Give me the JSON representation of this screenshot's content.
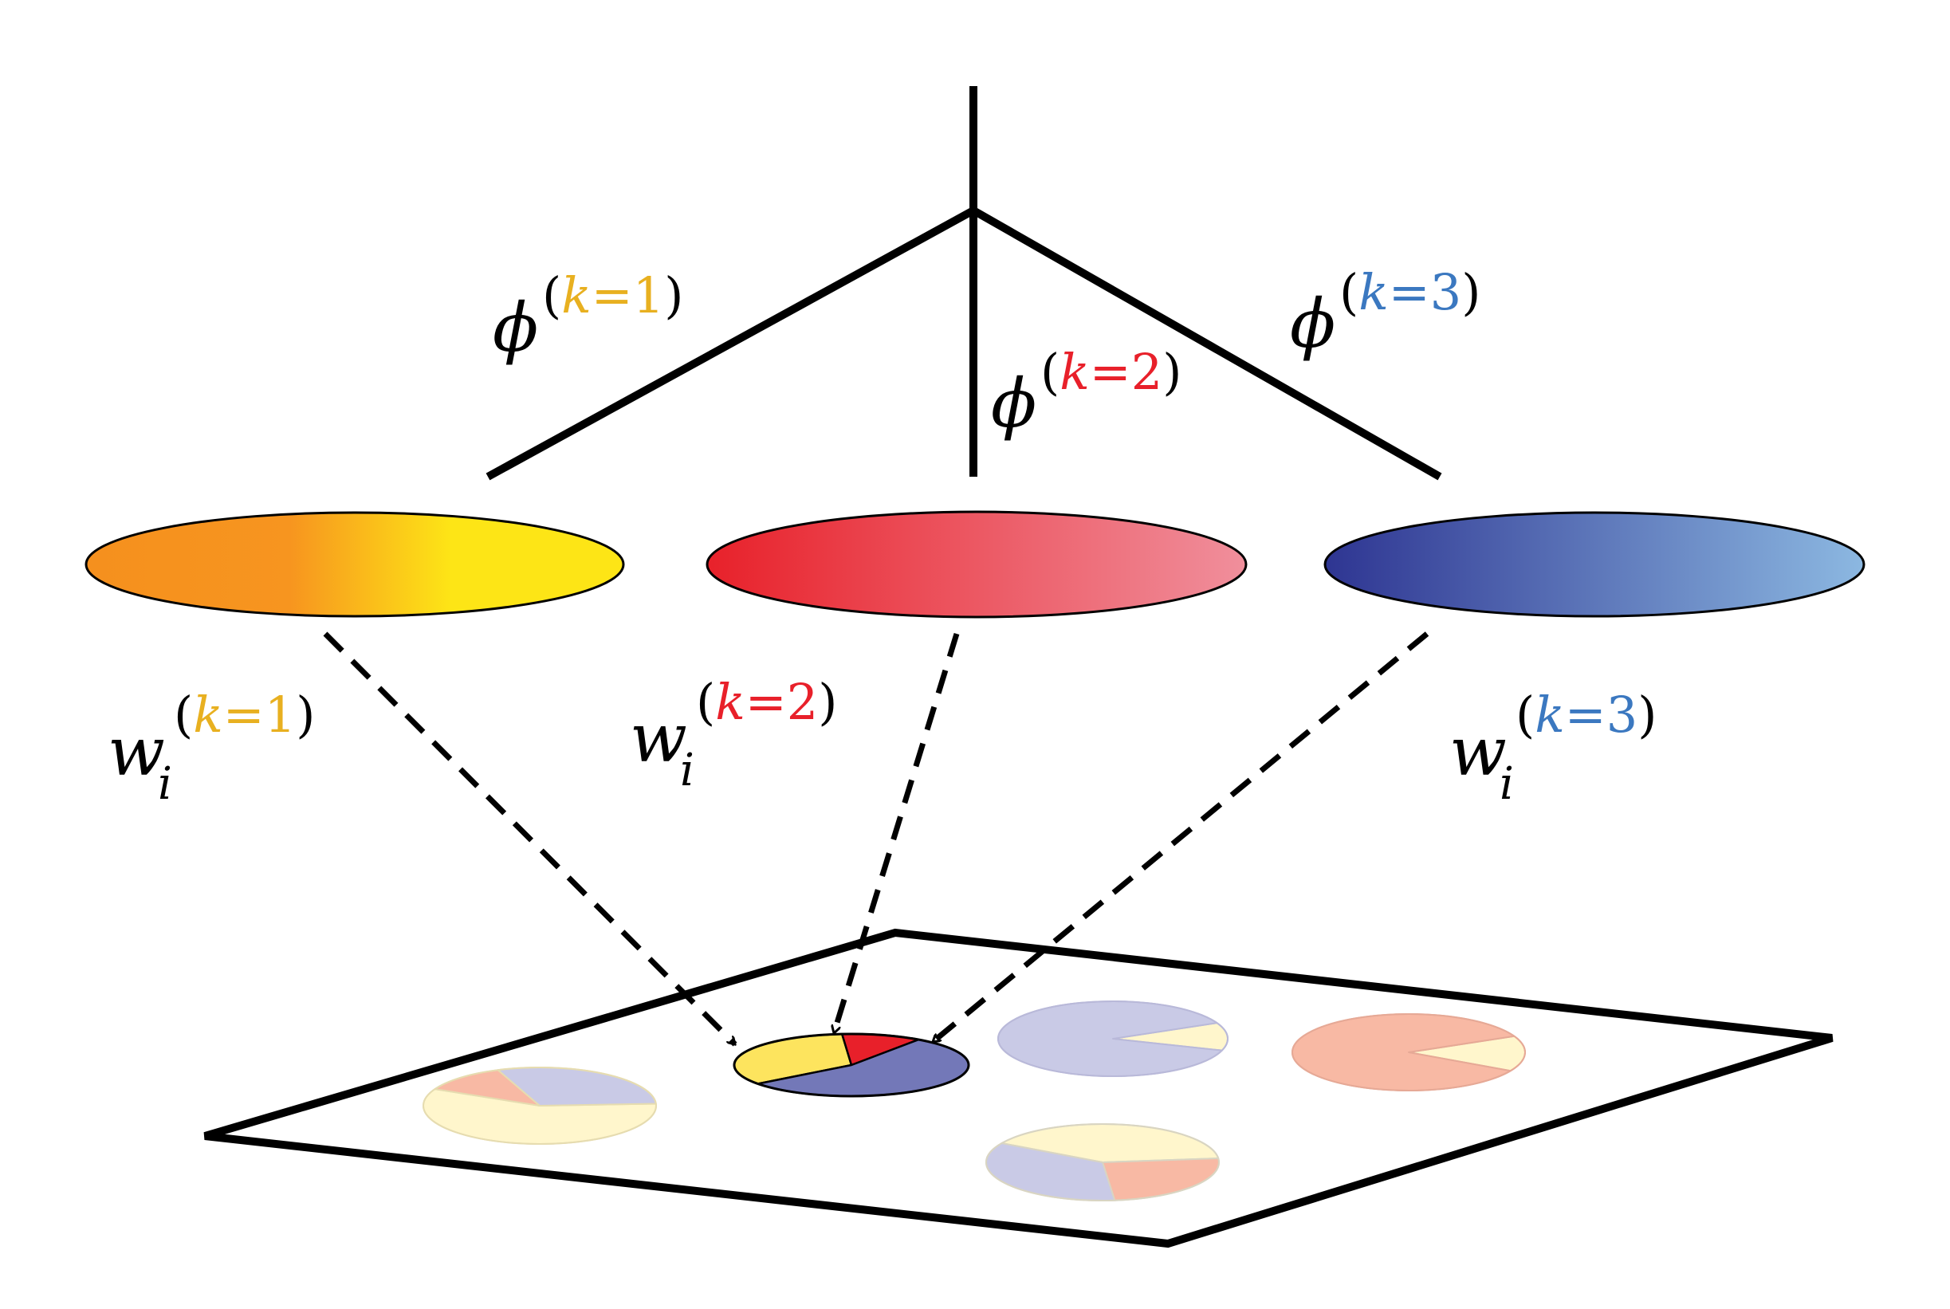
{
  "colors": {
    "line": "#000000",
    "k1": "#e8b020",
    "k2": "#e8202a",
    "k3": "#3b78c0",
    "ellipse1_from": "#f5901e",
    "ellipse1_mid": "#f7951f",
    "ellipse1_to": "#fde516",
    "ellipse2_from": "#e8212a",
    "ellipse2_to": "#f08f9c",
    "ellipse3_from": "#2e3592",
    "ellipse3_to": "#8cb8e1",
    "pie_yellow": "#fde45e",
    "pie_red": "#e8202a",
    "pie_blue": "#7378b8",
    "pie_faded_yellow": "#fff6cc",
    "pie_faded_red": "#f8b9a4",
    "pie_faded_blue": "#c9cae6"
  },
  "labels": {
    "phi1": {
      "symbol": "ϕ",
      "open": "(",
      "k": "k",
      "eq": "=",
      "num": "1",
      "close": ")"
    },
    "phi2": {
      "symbol": "ϕ",
      "open": "(",
      "k": "k",
      "eq": "=",
      "num": "2",
      "close": ")"
    },
    "phi3": {
      "symbol": "ϕ",
      "open": "(",
      "k": "k",
      "eq": "=",
      "num": "3",
      "close": ")"
    },
    "w1": {
      "symbol": "w",
      "sub": "i",
      "open": "(",
      "k": "k",
      "eq": "=",
      "num": "1",
      "close": ")"
    },
    "w2": {
      "symbol": "w",
      "sub": "i",
      "open": "(",
      "k": "k",
      "eq": "=",
      "num": "2",
      "close": ")"
    },
    "w3": {
      "symbol": "w",
      "sub": "i",
      "open": "(",
      "k": "k",
      "eq": "=",
      "num": "3",
      "close": ")"
    }
  },
  "pies": {
    "main": {
      "yellow": 0.34,
      "red": 0.11,
      "blue": 0.55
    },
    "top_middle": {
      "yellow": 0.12,
      "blue": 0.88
    },
    "top_right": {
      "yellow": 0.15,
      "red": 0.85
    },
    "bottom_left": {
      "yellow": 0.58,
      "red": 0.12,
      "blue": 0.3
    },
    "bottom_middle": {
      "yellow": 0.4,
      "red": 0.25,
      "blue": 0.35
    }
  }
}
